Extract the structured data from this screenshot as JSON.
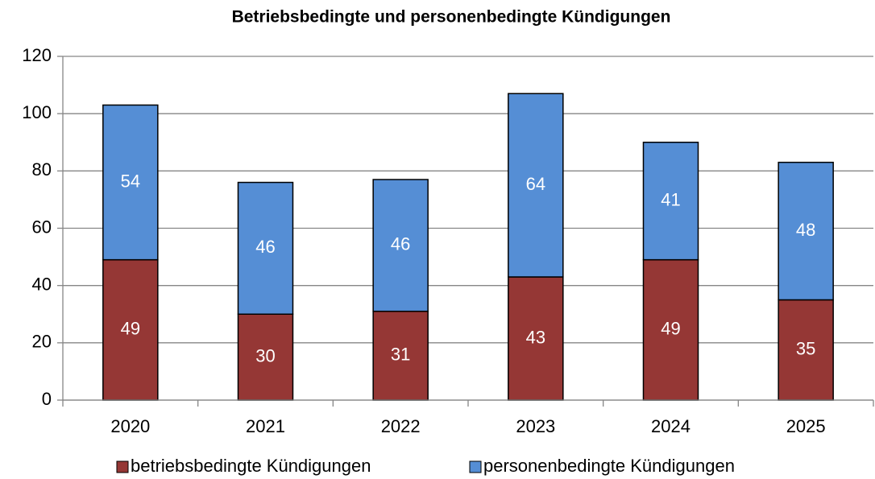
{
  "chart_data": {
    "type": "stacked_bar",
    "title": "Betriebsbedingte und personenbedingte Kündigungen",
    "categories": [
      "2020",
      "2021",
      "2022",
      "2023",
      "2024",
      "2025"
    ],
    "series": [
      {
        "name": "betriebsbedingte Kündigungen",
        "color": "#953735",
        "values": [
          49,
          30,
          31,
          43,
          49,
          35
        ]
      },
      {
        "name": "personenbedingte Kündigungen",
        "color": "#558ed5",
        "values": [
          54,
          46,
          46,
          64,
          41,
          48
        ]
      }
    ],
    "ylim": [
      0,
      120
    ],
    "yticks": [
      0,
      20,
      40,
      60,
      80,
      100,
      120
    ],
    "grid": true,
    "legend": "bottom"
  }
}
